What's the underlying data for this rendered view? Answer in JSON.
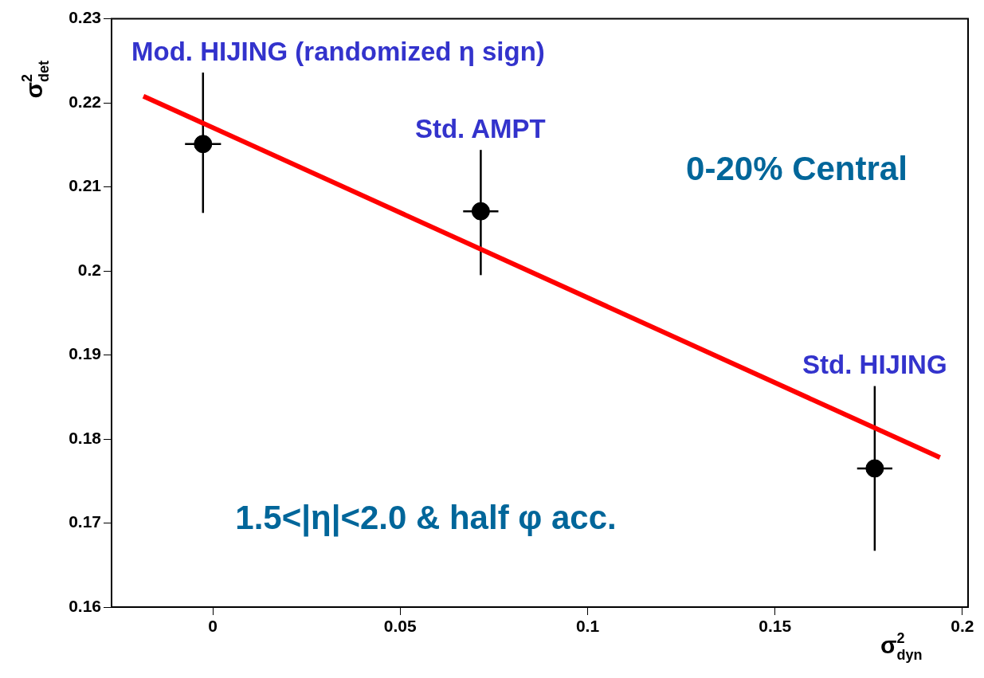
{
  "chart_data": {
    "type": "scatter",
    "xlabel": "σ$^{2}$$_{dyn}$",
    "ylabel": "σ$^{2}$$_{det}$",
    "xlim": [
      -0.027,
      0.2015
    ],
    "ylim": [
      0.16,
      0.23
    ],
    "xticks": [
      0,
      0.05,
      0.1,
      0.15,
      0.2
    ],
    "yticks": [
      0.16,
      0.17,
      0.18,
      0.19,
      0.2,
      0.21,
      0.22,
      0.23
    ],
    "series": [
      {
        "type": "line",
        "color": "#ff0000",
        "marker": "none",
        "x": [
          -0.0185,
          0.194
        ],
        "values": [
          0.2208,
          0.1778
        ]
      },
      {
        "color": "#000000",
        "marker": "circle",
        "x": [
          -0.0026,
          0.0715,
          0.1766
        ],
        "values": [
          0.2151,
          0.2071,
          0.1765
        ],
        "errors": [
          [
            0.2069,
            0.2236
          ],
          [
            0.1995,
            0.2144
          ],
          [
            0.1667,
            0.1863
          ]
        ],
        "xerrors": [
          0.0048,
          0.0047,
          0.0047
        ]
      }
    ],
    "annotations": [
      {
        "text": "Mod. HIJING (randomized η sign)",
        "x": -0.0026,
        "y": 0.2236
      },
      {
        "text": "Std. AMPT",
        "x": 0.0715,
        "y": 0.2144
      },
      {
        "text": "Std. HIJING",
        "x": 0.1766,
        "y": 0.1863
      },
      "0-20% Central",
      "1.5<|η|<2.0 & half φ acc."
    ]
  }
}
